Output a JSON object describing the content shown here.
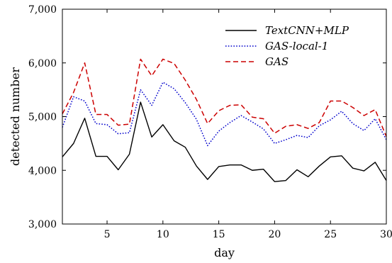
{
  "chart_data": {
    "type": "line",
    "xlabel": "day",
    "ylabel": "detected number",
    "xlim": [
      1,
      30
    ],
    "ylim": [
      3000,
      7000
    ],
    "xticks": [
      5,
      10,
      15,
      20,
      25,
      30
    ],
    "yticks": [
      3000,
      4000,
      5000,
      6000,
      7000
    ],
    "ytick_labels": [
      "3,000",
      "4,000",
      "5,000",
      "6,000",
      "7,000"
    ],
    "grid": false,
    "legend_position": "top-right",
    "x": [
      1,
      2,
      3,
      4,
      5,
      6,
      7,
      8,
      9,
      10,
      11,
      12,
      13,
      14,
      15,
      16,
      17,
      18,
      19,
      20,
      21,
      22,
      23,
      24,
      25,
      26,
      27,
      28,
      29,
      30
    ],
    "series": [
      {
        "name": "TextCNN+MLP",
        "color": "#000000",
        "dash": "solid",
        "values": [
          4250,
          4500,
          4970,
          4260,
          4260,
          4010,
          4300,
          5270,
          4620,
          4850,
          4550,
          4430,
          4080,
          3830,
          4070,
          4100,
          4100,
          4000,
          4020,
          3790,
          3810,
          4010,
          3880,
          4080,
          4250,
          4270,
          4040,
          3990,
          4150,
          3810
        ]
      },
      {
        "name": "GAS-local-1",
        "color": "#0000cc",
        "dash": "dotted",
        "values": [
          4800,
          5370,
          5290,
          4870,
          4850,
          4680,
          4700,
          5500,
          5210,
          5640,
          5520,
          5260,
          4950,
          4460,
          4730,
          4890,
          5020,
          4900,
          4770,
          4500,
          4570,
          4650,
          4610,
          4830,
          4940,
          5100,
          4870,
          4740,
          4960,
          4570
        ]
      },
      {
        "name": "GAS",
        "color": "#cc0000",
        "dash": "dashed",
        "values": [
          5050,
          5450,
          6000,
          5040,
          5040,
          4840,
          4860,
          6070,
          5760,
          6070,
          5990,
          5680,
          5320,
          4870,
          5110,
          5210,
          5220,
          4990,
          4960,
          4690,
          4820,
          4850,
          4780,
          4890,
          5290,
          5290,
          5170,
          5020,
          5130,
          4630
        ]
      }
    ]
  }
}
